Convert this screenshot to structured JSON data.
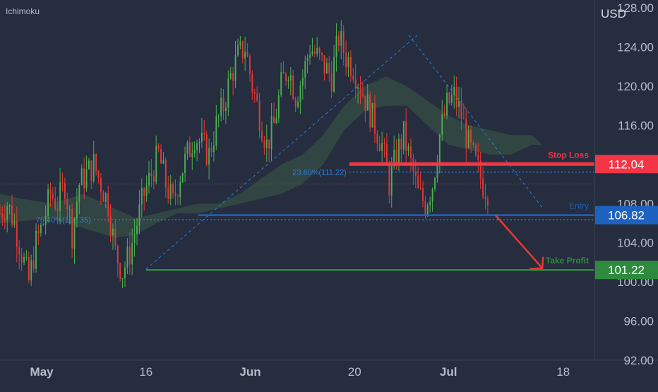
{
  "indicator_name": "Ichimoku",
  "currency_label": "USD",
  "colors": {
    "background": "#252d3f",
    "axis_text": "#b6bcc8",
    "divider": "#3a4356",
    "candle_up": "#4caf50",
    "candle_down": "#e53935",
    "cloud_green": "#3d5a46",
    "cloud_red": "#5a3c44",
    "stop_loss": "#f23645",
    "entry": "#1e62c0",
    "take_profit": "#2e8b3d",
    "fib": "#2f7ed8",
    "arrow": "#e53935"
  },
  "chart_data": {
    "type": "candlestick",
    "title": "",
    "ylabel": "USD",
    "ylim": [
      92,
      128.8
    ],
    "y_ticks": [
      "92.00",
      "96.00",
      "100.00",
      "104.00",
      "108.00",
      "112.00",
      "116.00",
      "120.00",
      "124.00",
      "128.00"
    ],
    "x_ticks": [
      "May",
      "16",
      "Jun",
      "20",
      "Jul",
      "18"
    ],
    "x_tick_positions": [
      1,
      11,
      21,
      31,
      40,
      51
    ],
    "xlim": [
      -3,
      54
    ],
    "price_path": [
      107,
      108,
      106,
      103,
      100,
      104,
      106,
      109,
      108,
      110,
      105,
      110,
      111,
      112,
      110,
      108,
      103,
      101,
      103,
      106,
      109,
      111,
      113,
      110,
      108,
      111,
      113,
      115,
      114,
      113,
      116,
      118,
      121,
      123,
      124,
      120,
      117,
      114,
      116,
      120,
      122,
      119,
      121,
      124,
      123,
      122,
      121,
      125,
      123,
      122,
      120,
      118,
      116,
      114,
      110,
      113,
      115,
      112,
      109,
      108,
      110,
      115,
      118,
      119,
      117,
      114,
      112,
      110,
      109
    ],
    "cloud": [
      {
        "x": [
          -3,
          -1,
          2,
          5,
          8,
          10,
          12,
          14,
          16,
          18,
          20,
          22,
          24,
          26,
          28,
          30,
          32,
          34,
          36,
          38,
          40,
          42,
          44,
          46,
          48,
          49
        ],
        "upper": [
          109,
          108.5,
          108,
          109,
          107.5,
          106.5,
          107,
          107.5,
          108,
          108,
          109,
          110.5,
          112,
          113,
          115,
          118,
          120,
          121,
          120,
          118.5,
          117,
          116,
          115.5,
          115,
          115,
          114
        ],
        "lower": [
          106,
          106.2,
          106.5,
          105.5,
          104.5,
          104.8,
          106,
          107,
          107,
          107.5,
          108,
          108.5,
          109,
          110,
          112,
          115.5,
          117.5,
          118,
          118,
          116,
          114,
          113.5,
          113,
          113,
          114,
          114
        ]
      }
    ],
    "fib_lines": [
      {
        "label": "23.60%(111.22)",
        "value": 111.22
      },
      {
        "label": "76.40%(106.35)",
        "value": 106.35
      }
    ],
    "levels": [
      {
        "name": "Stop Loss",
        "value": 112.04,
        "price_label": "112.04"
      },
      {
        "name": "Entry",
        "value": 106.82,
        "price_label": "106.82"
      },
      {
        "name": "Take Profit",
        "value": 101.22,
        "price_label": "101.22"
      }
    ],
    "grid": false,
    "legend": "top-left"
  }
}
